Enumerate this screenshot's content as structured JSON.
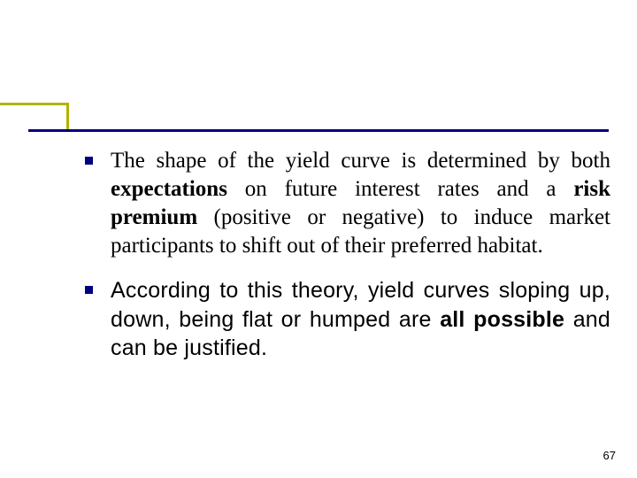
{
  "accent": {
    "border_color": "#b2b200",
    "underline_color": "#000080"
  },
  "bullets": {
    "marker_color": "#000080",
    "item1": {
      "pre": "The shape of the yield curve is determined by both ",
      "b1": "expectations",
      "mid1": " on future interest rates and a ",
      "b2": "risk premium",
      "post": " (positive or negative) to induce market participants to shift out of their preferred habitat."
    },
    "item2": {
      "pre": "According to this theory, yield curves sloping up, down, being flat or humped are ",
      "b1": "all possible",
      "post": " and can be justified."
    }
  },
  "page_number": "67"
}
